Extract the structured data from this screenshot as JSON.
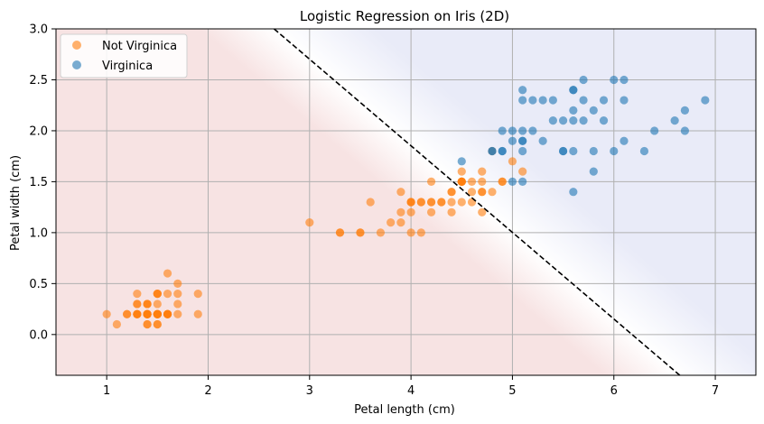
{
  "chart_data": {
    "type": "scatter",
    "title": "Logistic Regression on Iris (2D)",
    "xlabel": "Petal length (cm)",
    "ylabel": "Petal width (cm)",
    "xlim": [
      0.5,
      7.4
    ],
    "ylim": [
      -0.4,
      3.0
    ],
    "xticks": [
      1,
      2,
      3,
      4,
      5,
      6,
      7
    ],
    "yticks": [
      0.0,
      0.5,
      1.0,
      1.5,
      2.0,
      2.5,
      3.0
    ],
    "xtick_labels": [
      "1",
      "2",
      "3",
      "4",
      "5",
      "6",
      "7"
    ],
    "ytick_labels": [
      "0.0",
      "0.5",
      "1.0",
      "1.5",
      "2.0",
      "2.5",
      "3.0"
    ],
    "grid": true,
    "legend_position": "top-left",
    "decision_boundary": {
      "points": [
        [
          2.65,
          3.0
        ],
        [
          6.65,
          -0.4
        ]
      ],
      "style": "dashed",
      "color": "#000000"
    },
    "background": {
      "negative_region_color": "#f7e3e3",
      "positive_region_color": "#e9ebf8"
    },
    "series": [
      {
        "name": "Not Virginica",
        "color": "#ff7f0e",
        "points": [
          [
            1.4,
            0.2
          ],
          [
            1.4,
            0.2
          ],
          [
            1.3,
            0.2
          ],
          [
            1.5,
            0.2
          ],
          [
            1.4,
            0.2
          ],
          [
            1.7,
            0.4
          ],
          [
            1.4,
            0.3
          ],
          [
            1.5,
            0.2
          ],
          [
            1.4,
            0.2
          ],
          [
            1.5,
            0.1
          ],
          [
            1.5,
            0.2
          ],
          [
            1.6,
            0.2
          ],
          [
            1.4,
            0.1
          ],
          [
            1.1,
            0.1
          ],
          [
            1.2,
            0.2
          ],
          [
            1.5,
            0.4
          ],
          [
            1.3,
            0.4
          ],
          [
            1.4,
            0.3
          ],
          [
            1.7,
            0.3
          ],
          [
            1.5,
            0.3
          ],
          [
            1.7,
            0.2
          ],
          [
            1.5,
            0.4
          ],
          [
            1.0,
            0.2
          ],
          [
            1.7,
            0.5
          ],
          [
            1.9,
            0.2
          ],
          [
            1.6,
            0.2
          ],
          [
            1.6,
            0.4
          ],
          [
            1.5,
            0.2
          ],
          [
            1.4,
            0.2
          ],
          [
            1.6,
            0.2
          ],
          [
            1.6,
            0.2
          ],
          [
            1.5,
            0.4
          ],
          [
            1.5,
            0.1
          ],
          [
            1.4,
            0.2
          ],
          [
            1.5,
            0.2
          ],
          [
            1.2,
            0.2
          ],
          [
            1.3,
            0.2
          ],
          [
            1.4,
            0.1
          ],
          [
            1.3,
            0.2
          ],
          [
            1.5,
            0.2
          ],
          [
            1.3,
            0.3
          ],
          [
            1.3,
            0.3
          ],
          [
            1.3,
            0.2
          ],
          [
            1.6,
            0.6
          ],
          [
            1.9,
            0.4
          ],
          [
            1.4,
            0.3
          ],
          [
            1.6,
            0.2
          ],
          [
            1.4,
            0.2
          ],
          [
            1.5,
            0.2
          ],
          [
            1.4,
            0.2
          ],
          [
            4.7,
            1.4
          ],
          [
            4.5,
            1.5
          ],
          [
            4.9,
            1.5
          ],
          [
            4.0,
            1.3
          ],
          [
            4.6,
            1.5
          ],
          [
            4.5,
            1.3
          ],
          [
            4.7,
            1.6
          ],
          [
            3.3,
            1.0
          ],
          [
            4.6,
            1.3
          ],
          [
            3.9,
            1.4
          ],
          [
            3.5,
            1.0
          ],
          [
            4.2,
            1.5
          ],
          [
            4.0,
            1.0
          ],
          [
            4.7,
            1.4
          ],
          [
            3.6,
            1.3
          ],
          [
            4.4,
            1.4
          ],
          [
            4.5,
            1.5
          ],
          [
            4.1,
            1.0
          ],
          [
            4.5,
            1.5
          ],
          [
            3.9,
            1.1
          ],
          [
            4.8,
            1.8
          ],
          [
            4.0,
            1.3
          ],
          [
            4.9,
            1.5
          ],
          [
            4.7,
            1.2
          ],
          [
            4.3,
            1.3
          ],
          [
            4.4,
            1.4
          ],
          [
            4.8,
            1.4
          ],
          [
            5.0,
            1.7
          ],
          [
            4.5,
            1.5
          ],
          [
            3.5,
            1.0
          ],
          [
            3.8,
            1.1
          ],
          [
            3.7,
            1.0
          ],
          [
            3.9,
            1.2
          ],
          [
            5.1,
            1.6
          ],
          [
            4.5,
            1.5
          ],
          [
            4.5,
            1.6
          ],
          [
            4.7,
            1.5
          ],
          [
            4.4,
            1.3
          ],
          [
            4.1,
            1.3
          ],
          [
            4.0,
            1.3
          ],
          [
            4.4,
            1.2
          ],
          [
            4.6,
            1.4
          ],
          [
            4.0,
            1.2
          ],
          [
            3.3,
            1.0
          ],
          [
            4.2,
            1.3
          ],
          [
            4.2,
            1.2
          ],
          [
            4.2,
            1.3
          ],
          [
            4.3,
            1.3
          ],
          [
            3.0,
            1.1
          ],
          [
            4.1,
            1.3
          ]
        ]
      },
      {
        "name": "Virginica",
        "color": "#1f77b4",
        "points": [
          [
            6.0,
            2.5
          ],
          [
            5.1,
            1.9
          ],
          [
            5.9,
            2.1
          ],
          [
            5.6,
            1.8
          ],
          [
            5.8,
            2.2
          ],
          [
            6.6,
            2.1
          ],
          [
            4.5,
            1.7
          ],
          [
            6.3,
            1.8
          ],
          [
            5.8,
            1.8
          ],
          [
            6.1,
            2.5
          ],
          [
            5.1,
            2.0
          ],
          [
            5.3,
            1.9
          ],
          [
            5.5,
            2.1
          ],
          [
            5.0,
            2.0
          ],
          [
            5.1,
            2.4
          ],
          [
            5.3,
            2.3
          ],
          [
            5.5,
            1.8
          ],
          [
            6.7,
            2.2
          ],
          [
            6.9,
            2.3
          ],
          [
            5.0,
            1.5
          ],
          [
            5.7,
            2.3
          ],
          [
            4.9,
            2.0
          ],
          [
            6.7,
            2.0
          ],
          [
            4.9,
            1.8
          ],
          [
            5.7,
            2.1
          ],
          [
            6.0,
            1.8
          ],
          [
            4.8,
            1.8
          ],
          [
            4.9,
            1.8
          ],
          [
            5.6,
            2.1
          ],
          [
            5.8,
            1.6
          ],
          [
            6.1,
            1.9
          ],
          [
            6.4,
            2.0
          ],
          [
            5.6,
            2.2
          ],
          [
            5.1,
            1.5
          ],
          [
            5.6,
            1.4
          ],
          [
            6.1,
            2.3
          ],
          [
            5.6,
            2.4
          ],
          [
            5.5,
            1.8
          ],
          [
            4.8,
            1.8
          ],
          [
            5.4,
            2.1
          ],
          [
            5.6,
            2.4
          ],
          [
            5.1,
            2.3
          ],
          [
            5.1,
            1.9
          ],
          [
            5.9,
            2.3
          ],
          [
            5.7,
            2.5
          ],
          [
            5.2,
            2.3
          ],
          [
            5.0,
            1.9
          ],
          [
            5.2,
            2.0
          ],
          [
            5.4,
            2.3
          ],
          [
            5.1,
            1.8
          ]
        ]
      }
    ]
  }
}
